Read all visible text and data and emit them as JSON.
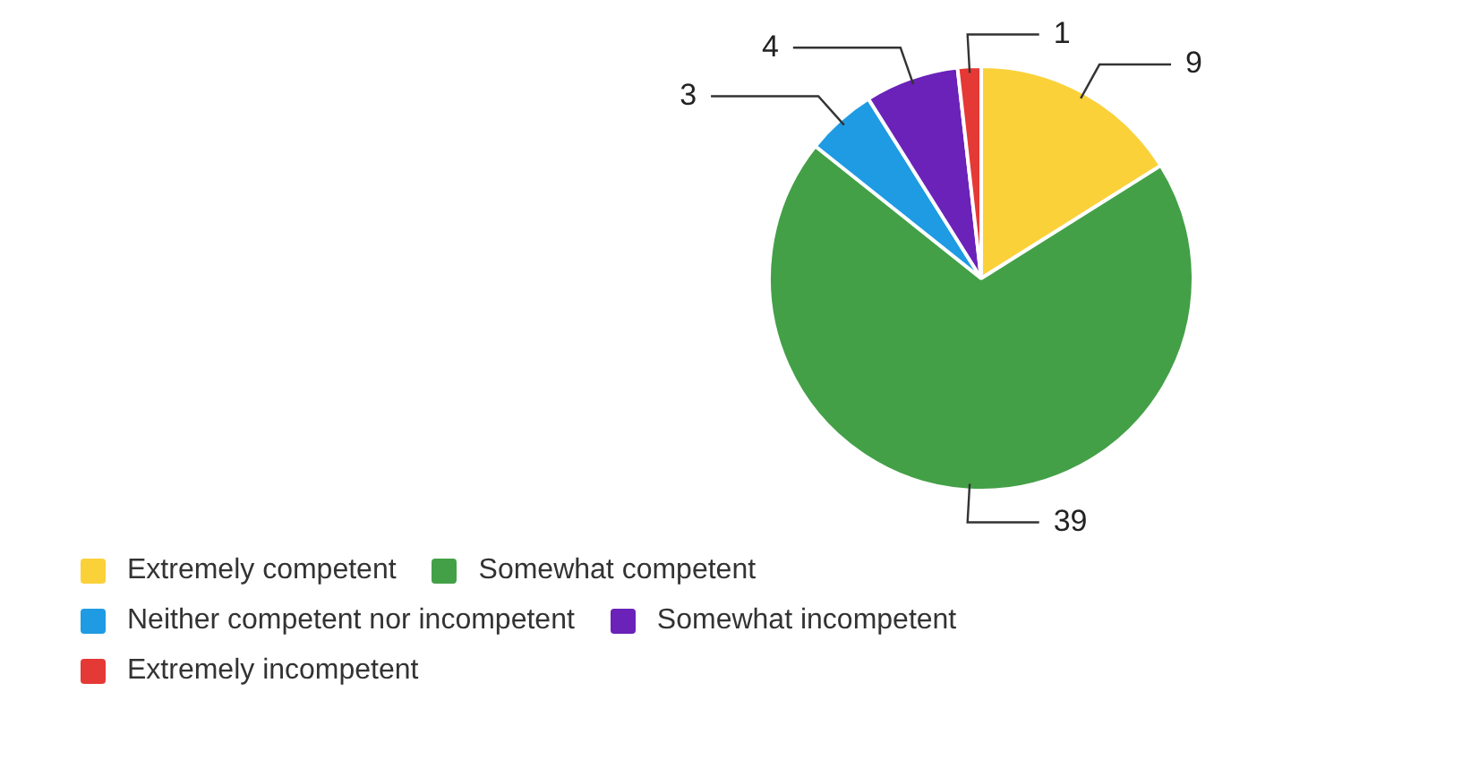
{
  "chart_data": {
    "type": "pie",
    "categories": [
      "Extremely competent",
      "Somewhat competent",
      "Neither competent nor incompetent",
      "Somewhat incompetent",
      "Extremely incompetent"
    ],
    "values": [
      9,
      39,
      3,
      4,
      1
    ],
    "colors": [
      "#fbd13a",
      "#43a047",
      "#1e9be3",
      "#6a22b8",
      "#e53935"
    ],
    "data_labels": true,
    "legend": "bottom left"
  }
}
